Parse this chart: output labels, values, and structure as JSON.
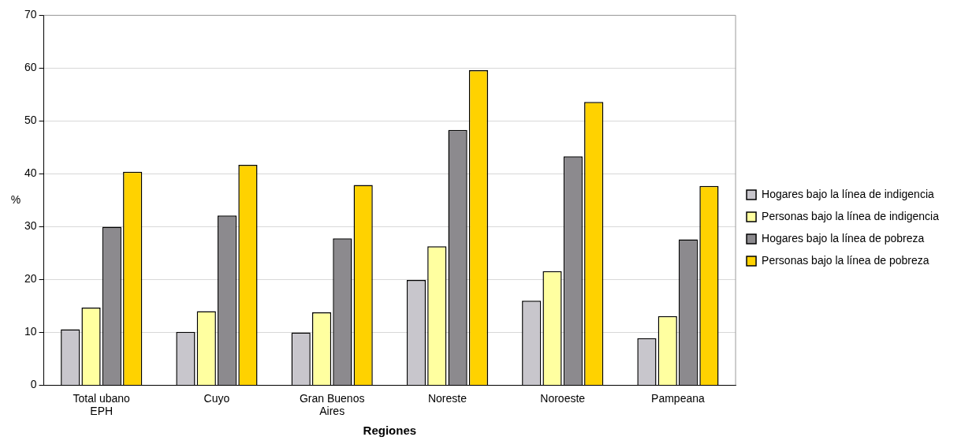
{
  "chart_data": {
    "type": "bar",
    "xlabel": "Regiones",
    "ylabel": "%",
    "categories": [
      "Total ubano EPH",
      "Cuyo",
      "Gran Buenos Aires",
      "Noreste",
      "Noroeste",
      "Pampeana"
    ],
    "series": [
      {
        "name": "Hogares bajo la línea de indigencia",
        "color": "#c8c6cc",
        "values": [
          10.6,
          10.1,
          10.0,
          19.9,
          16.0,
          8.9
        ]
      },
      {
        "name": "Personas bajo la línea de indigencia",
        "color": "#ffffa0",
        "values": [
          14.7,
          14.0,
          13.8,
          26.3,
          21.6,
          13.1
        ]
      },
      {
        "name": "Hogares bajo la línea de pobreza",
        "color": "#8c8a8e",
        "values": [
          30.0,
          32.1,
          27.8,
          48.3,
          43.3,
          27.6
        ]
      },
      {
        "name": "Personas bajo la línea de pobreza",
        "color": "#ffd200",
        "values": [
          40.4,
          41.7,
          37.9,
          59.6,
          53.6,
          37.7
        ]
      }
    ],
    "ylim": [
      0,
      70
    ],
    "yticks": [
      0,
      10,
      20,
      30,
      40,
      50,
      60,
      70
    ],
    "grid": "y",
    "legend": "right"
  }
}
